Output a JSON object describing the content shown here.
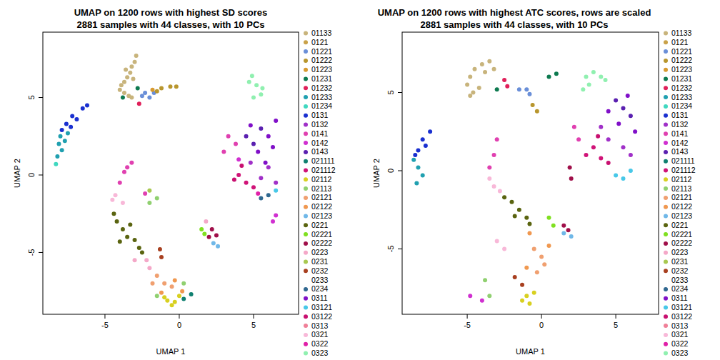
{
  "chart_data": [
    {
      "type": "scatter",
      "title": "UMAP on 1200 rows with highest SD scores",
      "subtitle": "2881 samples with 44 classes, with 10 PCs",
      "x_label": "UMAP 1",
      "y_label": "UMAP 2",
      "xlim": [
        -9.18,
        8.03
      ],
      "ylim": [
        -8.99,
        9.22
      ],
      "xticks": [
        -5,
        0,
        5
      ],
      "yticks": [
        -5,
        0,
        5
      ],
      "grid": false,
      "legend": "right",
      "series": [
        {
          "name": "01133",
          "color": "#c8b47c",
          "x": [
            -2.9,
            -3.0,
            -3.2,
            -3.3,
            -3.5,
            -3.7,
            -3.9,
            -4.0,
            -3.7,
            -3.4,
            -3.2,
            -3.6,
            -3.1
          ],
          "values": [
            7.7,
            7.3,
            7.0,
            6.6,
            6.3,
            6.0,
            5.8,
            5.5,
            5.3,
            5.1,
            5.0,
            6.8,
            6.2
          ]
        },
        {
          "name": "0121",
          "color": "#c9a24a",
          "x": [],
          "values": []
        },
        {
          "name": "01221",
          "color": "#6a8fd8",
          "x": [
            -2.3,
            -2.0,
            -1.7,
            -2.5
          ],
          "values": [
            5.3,
            5.0,
            5.3,
            5.1
          ]
        },
        {
          "name": "01222",
          "color": "#b8962e",
          "x": [
            -1.2,
            -0.6,
            -0.2,
            -1.5
          ],
          "values": [
            5.6,
            5.7,
            5.7,
            5.4
          ]
        },
        {
          "name": "01223",
          "color": "#d89a30",
          "x": [
            -1.8
          ],
          "values": [
            5.5
          ]
        },
        {
          "name": "01231",
          "color": "#0e7a50",
          "x": [
            -3.8,
            -2.8
          ],
          "values": [
            5.0,
            5.6
          ]
        },
        {
          "name": "01232",
          "color": "#e0205a",
          "x": [
            -2.7
          ],
          "values": [
            4.6
          ]
        },
        {
          "name": "01233",
          "color": "#20a0b0",
          "x": [
            -8.0,
            -8.1,
            -7.9,
            -8.2,
            -7.7,
            -7.5
          ],
          "values": [
            2.5,
            2.0,
            1.6,
            1.2,
            2.2,
            2.7
          ]
        },
        {
          "name": "01234",
          "color": "#40d8c0",
          "x": [
            -8.3
          ],
          "values": [
            0.7
          ]
        },
        {
          "name": "0131",
          "color": "#1a30d0",
          "x": [
            -6.5,
            -7.2,
            -7.6,
            -7.9,
            -7.3,
            -6.9,
            -6.2
          ],
          "values": [
            4.3,
            3.8,
            3.3,
            2.9,
            3.1,
            3.6,
            4.5
          ]
        },
        {
          "name": "0132",
          "color": "#a030c8",
          "x": [
            6.0,
            6.5,
            5.5,
            4.8
          ],
          "values": [
            0.5,
            -0.5,
            -0.2,
            0.8
          ]
        },
        {
          "name": "0141",
          "color": "#e040b0",
          "x": [
            -3.5,
            -3.7,
            -4.0,
            -3.2,
            -2.3,
            3.3,
            3.0,
            3.8
          ],
          "values": [
            0.5,
            0.2,
            -0.5,
            0.8,
            -1.2,
            2.5,
            1.5,
            2.0
          ]
        },
        {
          "name": "0142",
          "color": "#d030d0",
          "x": [
            4.0,
            6.3,
            6.5
          ],
          "values": [
            1.0,
            -3.0,
            -2.6
          ]
        },
        {
          "name": "0143",
          "color": "#5a20b0",
          "x": [
            4.5,
            5.0,
            5.5
          ],
          "values": [
            2.5,
            2.0,
            3.0
          ]
        },
        {
          "name": "021111",
          "color": "#108070",
          "x": [
            0.3,
            0.8
          ],
          "values": [
            -8.0,
            -7.7
          ]
        },
        {
          "name": "021112",
          "color": "#d01478",
          "x": [
            4.0,
            4.5,
            5.0
          ],
          "values": [
            0.0,
            -0.5,
            -0.8
          ]
        },
        {
          "name": "02112",
          "color": "#d8d020",
          "x": [
            -0.8,
            -0.3,
            0.0,
            -1.0,
            -0.5
          ],
          "values": [
            -8.1,
            -8.2,
            -7.8,
            -7.9,
            -8.4
          ]
        },
        {
          "name": "02113",
          "color": "#90d070",
          "x": [
            -1.5,
            0.3,
            -2.0,
            -1.5
          ],
          "values": [
            -7.8,
            -7.0,
            -1.8,
            -1.5
          ]
        },
        {
          "name": "02121",
          "color": "#f0a070",
          "x": [
            -1.5,
            -1.0,
            -0.5,
            -1.8
          ],
          "values": [
            -6.5,
            -7.0,
            -7.2,
            -7.0
          ]
        },
        {
          "name": "02122",
          "color": "#f09850",
          "x": [
            -1.2,
            -0.3,
            0.2
          ],
          "values": [
            -7.6,
            -6.8,
            -7.5
          ]
        },
        {
          "name": "02123",
          "color": "#70b8e8",
          "x": [
            2.3,
            2.6
          ],
          "values": [
            -4.4,
            -4.6
          ]
        },
        {
          "name": "0221",
          "color": "#5a6410",
          "x": [
            -4.2,
            -3.8,
            -3.5,
            -3.0,
            -2.7,
            -4.0,
            -3.3,
            -2.5,
            -4.4
          ],
          "values": [
            -3.0,
            -3.5,
            -4.0,
            -4.2,
            -4.7,
            -4.3,
            -3.2,
            -5.0,
            -2.5
          ]
        },
        {
          "name": "02221",
          "color": "#80e020",
          "x": [
            1.5,
            1.7
          ],
          "values": [
            -3.5,
            -3.8
          ]
        },
        {
          "name": "02222",
          "color": "#a0104a",
          "x": [
            2.2,
            2.5,
            2.0
          ],
          "values": [
            -3.5,
            -3.9,
            -4.0
          ]
        },
        {
          "name": "0223",
          "color": "#f4a8c8",
          "x": [
            -2.2,
            -2.0,
            -3.0,
            1.8
          ],
          "values": [
            -5.5,
            -6.0,
            -5.5,
            -3.0
          ]
        },
        {
          "name": "0231",
          "color": "#a8c850",
          "x": [
            -2.0
          ],
          "values": [
            -1.0
          ]
        },
        {
          "name": "0232",
          "color": "#a84020",
          "x": [
            -1.2,
            -1.3
          ],
          "values": [
            -5.3,
            -4.8
          ]
        },
        {
          "name": "0233",
          "color": "#ffffff",
          "x": [],
          "values": []
        },
        {
          "name": "0234",
          "color": "#306890",
          "x": [
            5.5,
            6.0
          ],
          "values": [
            -1.5,
            -1.3
          ]
        },
        {
          "name": "0311",
          "color": "#8010c8",
          "x": [
            6.0,
            5.3,
            6.5,
            4.8,
            5.8,
            6.3
          ],
          "values": [
            2.5,
            1.5,
            3.5,
            3.2,
            0.8,
            1.8
          ]
        },
        {
          "name": "03121",
          "color": "#48c8e8",
          "x": [
            6.5
          ],
          "values": [
            -1.0
          ]
        },
        {
          "name": "03122",
          "color": "#c81070",
          "x": [
            3.7,
            4.2
          ],
          "values": [
            -0.3,
            0.6
          ]
        },
        {
          "name": "0313",
          "color": "#f08098",
          "x": [],
          "values": []
        },
        {
          "name": "0321",
          "color": "#f8b8d8",
          "x": [
            -4.3,
            -4.5,
            -3.8
          ],
          "values": [
            -1.3,
            -1.6,
            -1.8
          ]
        },
        {
          "name": "0322",
          "color": "#e020a8",
          "x": [
            5.3
          ],
          "values": [
            -1.2
          ]
        },
        {
          "name": "0323",
          "color": "#90f0b0",
          "x": [
            4.7,
            5.2,
            5.5,
            5.0,
            4.9,
            5.6
          ],
          "values": [
            6.0,
            5.8,
            5.2,
            5.0,
            6.4,
            5.6
          ]
        }
      ]
    },
    {
      "type": "scatter",
      "title": "UMAP on 1200 rows with highest ATC scores, rows are scaled",
      "subtitle": "2881 samples with 44 classes, with 10 PCs",
      "x_label": "UMAP 1",
      "y_label": "UMAP 2",
      "xlim": [
        -9.38,
        7.88
      ],
      "ylim": [
        -9.18,
        8.86
      ],
      "xticks": [
        -5,
        0,
        5
      ],
      "yticks": [
        -5,
        0,
        5
      ],
      "grid": false,
      "legend": "right",
      "series": [
        {
          "name": "01133",
          "color": "#c8b47c",
          "x": [
            -4.8,
            -4.5,
            -4.0,
            -3.5,
            -5.0,
            -4.6,
            -4.2,
            -3.8,
            -4.8,
            -3.2
          ],
          "values": [
            6.0,
            6.5,
            6.8,
            7.0,
            5.5,
            5.0,
            5.3,
            6.3,
            4.8,
            6.5
          ]
        },
        {
          "name": "0121",
          "color": "#c9a24a",
          "x": [],
          "values": []
        },
        {
          "name": "01221",
          "color": "#6a8fd8",
          "x": [
            -1.5,
            -1.0,
            -0.8
          ],
          "values": [
            5.2,
            5.2,
            4.9
          ]
        },
        {
          "name": "01222",
          "color": "#b8962e",
          "x": [
            -0.6,
            -0.3
          ],
          "values": [
            4.2,
            3.8
          ]
        },
        {
          "name": "01223",
          "color": "#d89a30",
          "x": [],
          "values": []
        },
        {
          "name": "01231",
          "color": "#0e7a50",
          "x": [
            -3.0,
            0.5,
            1.0
          ],
          "values": [
            5.2,
            6.0,
            6.2
          ]
        },
        {
          "name": "01232",
          "color": "#e0205a",
          "x": [
            -2.5,
            -2.3
          ],
          "values": [
            5.8,
            5.4
          ]
        },
        {
          "name": "01233",
          "color": "#20a0b0",
          "x": [
            -8.6,
            -8.3,
            -8.0,
            -8.4
          ],
          "values": [
            0.7,
            0.2,
            -0.3,
            -0.8
          ]
        },
        {
          "name": "01234",
          "color": "#40d8c0",
          "x": [],
          "values": []
        },
        {
          "name": "0131",
          "color": "#1a30d0",
          "x": [
            -8.0,
            -8.3,
            -7.5,
            -7.8,
            -8.5
          ],
          "values": [
            2.0,
            1.3,
            2.5,
            1.6,
            1.0
          ]
        },
        {
          "name": "0132",
          "color": "#a030c8",
          "x": [
            4.5,
            5.5,
            6.0,
            4.0
          ],
          "values": [
            2.0,
            1.5,
            1.0,
            2.8
          ]
        },
        {
          "name": "0141",
          "color": "#e040b0",
          "x": [
            2.2,
            2.5,
            -3.0,
            -3.2,
            -3.5
          ],
          "values": [
            2.8,
            2.0,
            2.0,
            1.0,
            0.2
          ]
        },
        {
          "name": "0142",
          "color": "#d030d0",
          "x": [
            -4.8,
            -4.0
          ],
          "values": [
            -8.0,
            -8.3
          ]
        },
        {
          "name": "0143",
          "color": "#5a20b0",
          "x": [
            5.0,
            5.5,
            6.0
          ],
          "values": [
            4.5,
            4.0,
            3.5
          ]
        },
        {
          "name": "021111",
          "color": "#108070",
          "x": [],
          "values": []
        },
        {
          "name": "021112",
          "color": "#d01478",
          "x": [
            3.5,
            4.0,
            3.0
          ],
          "values": [
            1.5,
            0.8,
            1.0
          ]
        },
        {
          "name": "02112",
          "color": "#d8d020",
          "x": [
            -1.0,
            -0.5,
            -1.3,
            -0.8
          ],
          "values": [
            -8.0,
            -7.8,
            -8.3,
            -8.5
          ]
        },
        {
          "name": "02113",
          "color": "#90d070",
          "x": [
            -3.8,
            -3.5
          ],
          "values": [
            -7.0,
            -8.0
          ]
        },
        {
          "name": "02121",
          "color": "#f0a070",
          "x": [
            -0.5,
            0.0,
            -0.3,
            0.2
          ],
          "values": [
            -5.0,
            -5.5,
            -6.5,
            -6.0
          ]
        },
        {
          "name": "02122",
          "color": "#f09850",
          "x": [
            -1.0,
            0.5,
            -0.8
          ],
          "values": [
            -6.2,
            -4.8,
            -4.0
          ]
        },
        {
          "name": "02123",
          "color": "#70b8e8",
          "x": [
            1.5,
            2.0
          ],
          "values": [
            -4.0,
            -4.2
          ]
        },
        {
          "name": "0221",
          "color": "#5a6410",
          "x": [
            -2.0,
            -1.5,
            -1.0,
            -2.5,
            -0.8,
            -1.8
          ],
          "values": [
            -2.0,
            -2.5,
            -3.0,
            -1.7,
            -3.4,
            -2.9
          ]
        },
        {
          "name": "02221",
          "color": "#80e020",
          "x": [
            0.5,
            0.8
          ],
          "values": [
            -3.0,
            -3.5
          ]
        },
        {
          "name": "02222",
          "color": "#a0104a",
          "x": [
            1.5,
            1.8,
            2.0,
            1.9
          ],
          "values": [
            -3.5,
            -3.8,
            -0.5,
            0.2
          ]
        },
        {
          "name": "0223",
          "color": "#f4a8c8",
          "x": [],
          "values": []
        },
        {
          "name": "0231",
          "color": "#a8c850",
          "x": [],
          "values": []
        },
        {
          "name": "0232",
          "color": "#a84020",
          "x": [
            -1.3,
            -1.8
          ],
          "values": [
            -7.3,
            -6.8
          ]
        },
        {
          "name": "0233",
          "color": "#ffffff",
          "x": [],
          "values": []
        },
        {
          "name": "0234",
          "color": "#306890",
          "x": [],
          "values": []
        },
        {
          "name": "0311",
          "color": "#8010c8",
          "x": [
            5.2,
            6.3,
            4.5,
            5.8
          ],
          "values": [
            3.0,
            2.5,
            3.8,
            4.8
          ]
        },
        {
          "name": "03121",
          "color": "#48c8e8",
          "x": [
            5.5,
            6.0,
            5.0
          ],
          "values": [
            -0.5,
            0.0,
            -0.3
          ]
        },
        {
          "name": "03122",
          "color": "#c81070",
          "x": [
            4.5,
            3.8
          ],
          "values": [
            0.5,
            2.2
          ]
        },
        {
          "name": "0313",
          "color": "#f08098",
          "x": [],
          "values": []
        },
        {
          "name": "0321",
          "color": "#f8b8d8",
          "x": [
            -3.5,
            -3.2,
            -2.8,
            -3.0,
            -2.5
          ],
          "values": [
            -0.5,
            -1.0,
            -1.3,
            -4.5,
            -5.0
          ]
        },
        {
          "name": "0322",
          "color": "#e020a8",
          "x": [],
          "values": []
        },
        {
          "name": "0323",
          "color": "#90f0b0",
          "x": [
            3.0,
            3.5,
            4.0,
            3.2,
            4.3,
            2.8
          ],
          "values": [
            6.0,
            6.3,
            6.0,
            5.5,
            5.8,
            5.2
          ]
        }
      ]
    }
  ]
}
